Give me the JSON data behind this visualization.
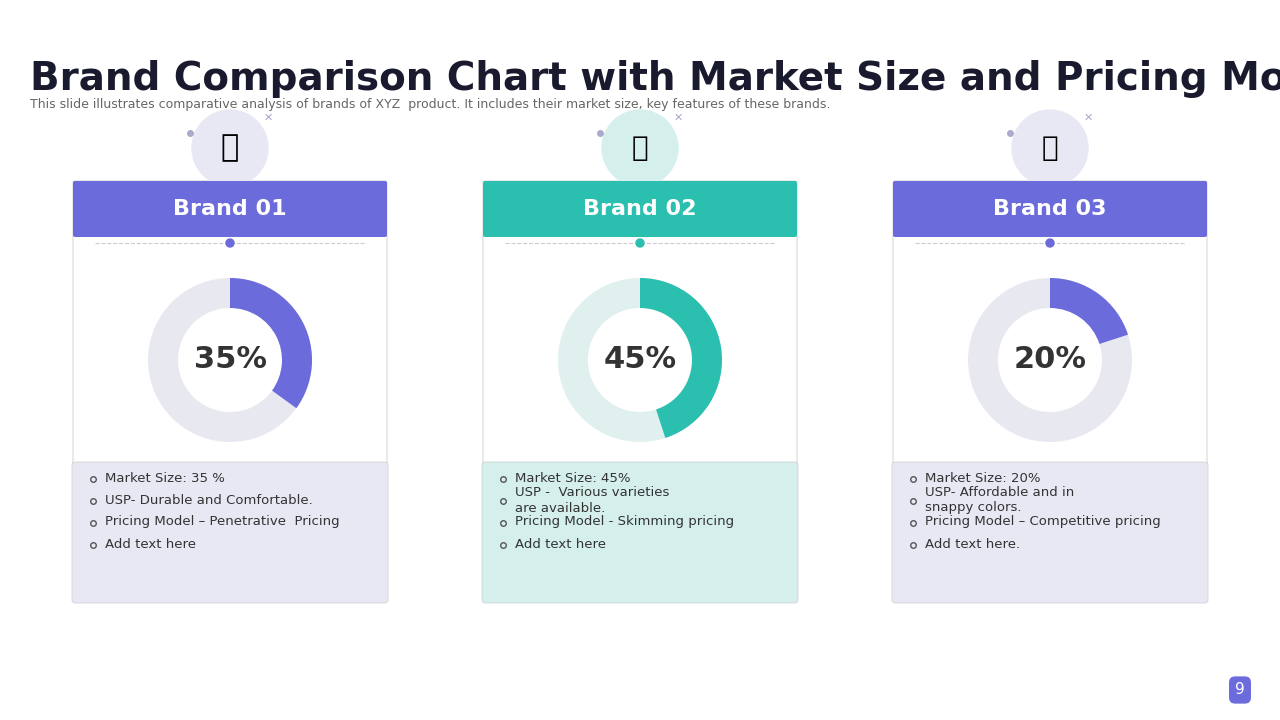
{
  "title": "Brand Comparison Chart with Market Size and Pricing Model",
  "subtitle": "This slide illustrates comparative analysis of brands of XYZ  product. It includes their market size, key features of these brands.",
  "background_color": "#ffffff",
  "title_color": "#1a1a2e",
  "brands": [
    {
      "name": "Brand 01",
      "header_color": "#6B6BDB",
      "donut_color": "#6B6BDB",
      "donut_bg": "#E8E8F0",
      "percentage": 35,
      "text_color": "#333333",
      "info_bg": "#E8E8F5",
      "bullet_points": [
        "Market Size: 35 %",
        "USP- Durable and Comfortable.",
        "Pricing Model – Penetrative  Pricing",
        "Add text here"
      ]
    },
    {
      "name": "Brand 02",
      "header_color": "#2BBFB0",
      "donut_color": "#2BBFB0",
      "donut_bg": "#E0F0EE",
      "percentage": 45,
      "text_color": "#333333",
      "info_bg": "#D5F0EC",
      "bullet_points": [
        "Market Size: 45%",
        "USP -  Various varieties\nare available.",
        "Pricing Model - Skimming pricing",
        "Add text here"
      ]
    },
    {
      "name": "Brand 03",
      "header_color": "#6B6BDB",
      "donut_color": "#6B6BDB",
      "donut_bg": "#E8E8F0",
      "percentage": 20,
      "text_color": "#333333",
      "info_bg": "#E8E8F5",
      "bullet_points": [
        "Market Size: 20%",
        "USP- Affordable and in\nsnappy colors.",
        "Pricing Model – Competitive pricing",
        "Add text here."
      ]
    }
  ],
  "card_border_color": "#E0E0E0",
  "icon_circle_color": "#E8E8F5",
  "icon2_circle_color": "#D5F0EC",
  "title_fontsize": 28,
  "subtitle_fontsize": 9,
  "brand_name_fontsize": 16,
  "pct_fontsize": 22,
  "bullet_fontsize": 9.5
}
